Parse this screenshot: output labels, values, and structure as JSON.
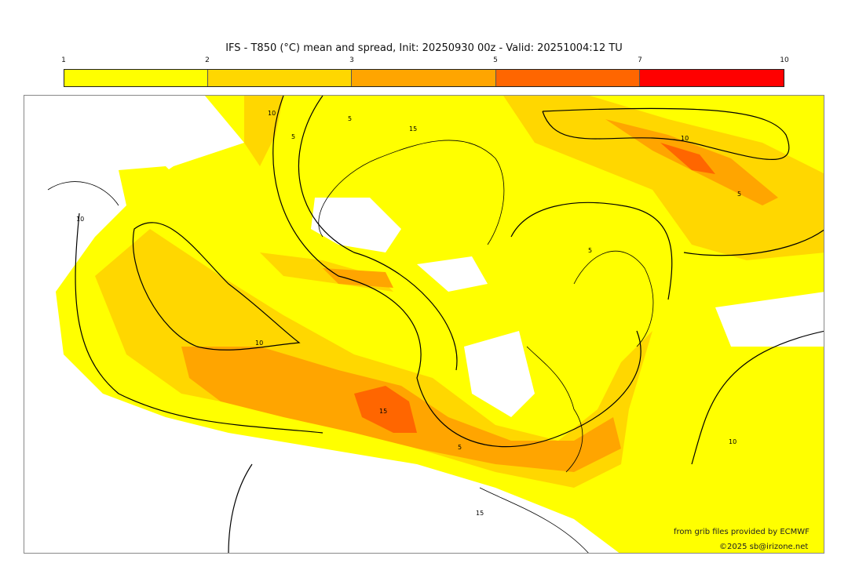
{
  "title": "IFS - T850 (°C) mean and spread, Init: 20250930 00z - Valid: 20251004:12 TU",
  "colorbar": {
    "ticks": [
      "1",
      "2",
      "3",
      "5",
      "7",
      "10"
    ],
    "colors": [
      "#ffff00",
      "#ffd700",
      "#ffa500",
      "#ff6600",
      "#ff0000"
    ]
  },
  "contour_labels": [
    "10",
    "10",
    "15",
    "5",
    "5",
    "10",
    "15",
    "5",
    "10",
    "5",
    "10",
    "15",
    "5"
  ],
  "credits": {
    "source": "from grib files provided by ECMWF",
    "copyright": "©2025 sb@irizone.net"
  }
}
